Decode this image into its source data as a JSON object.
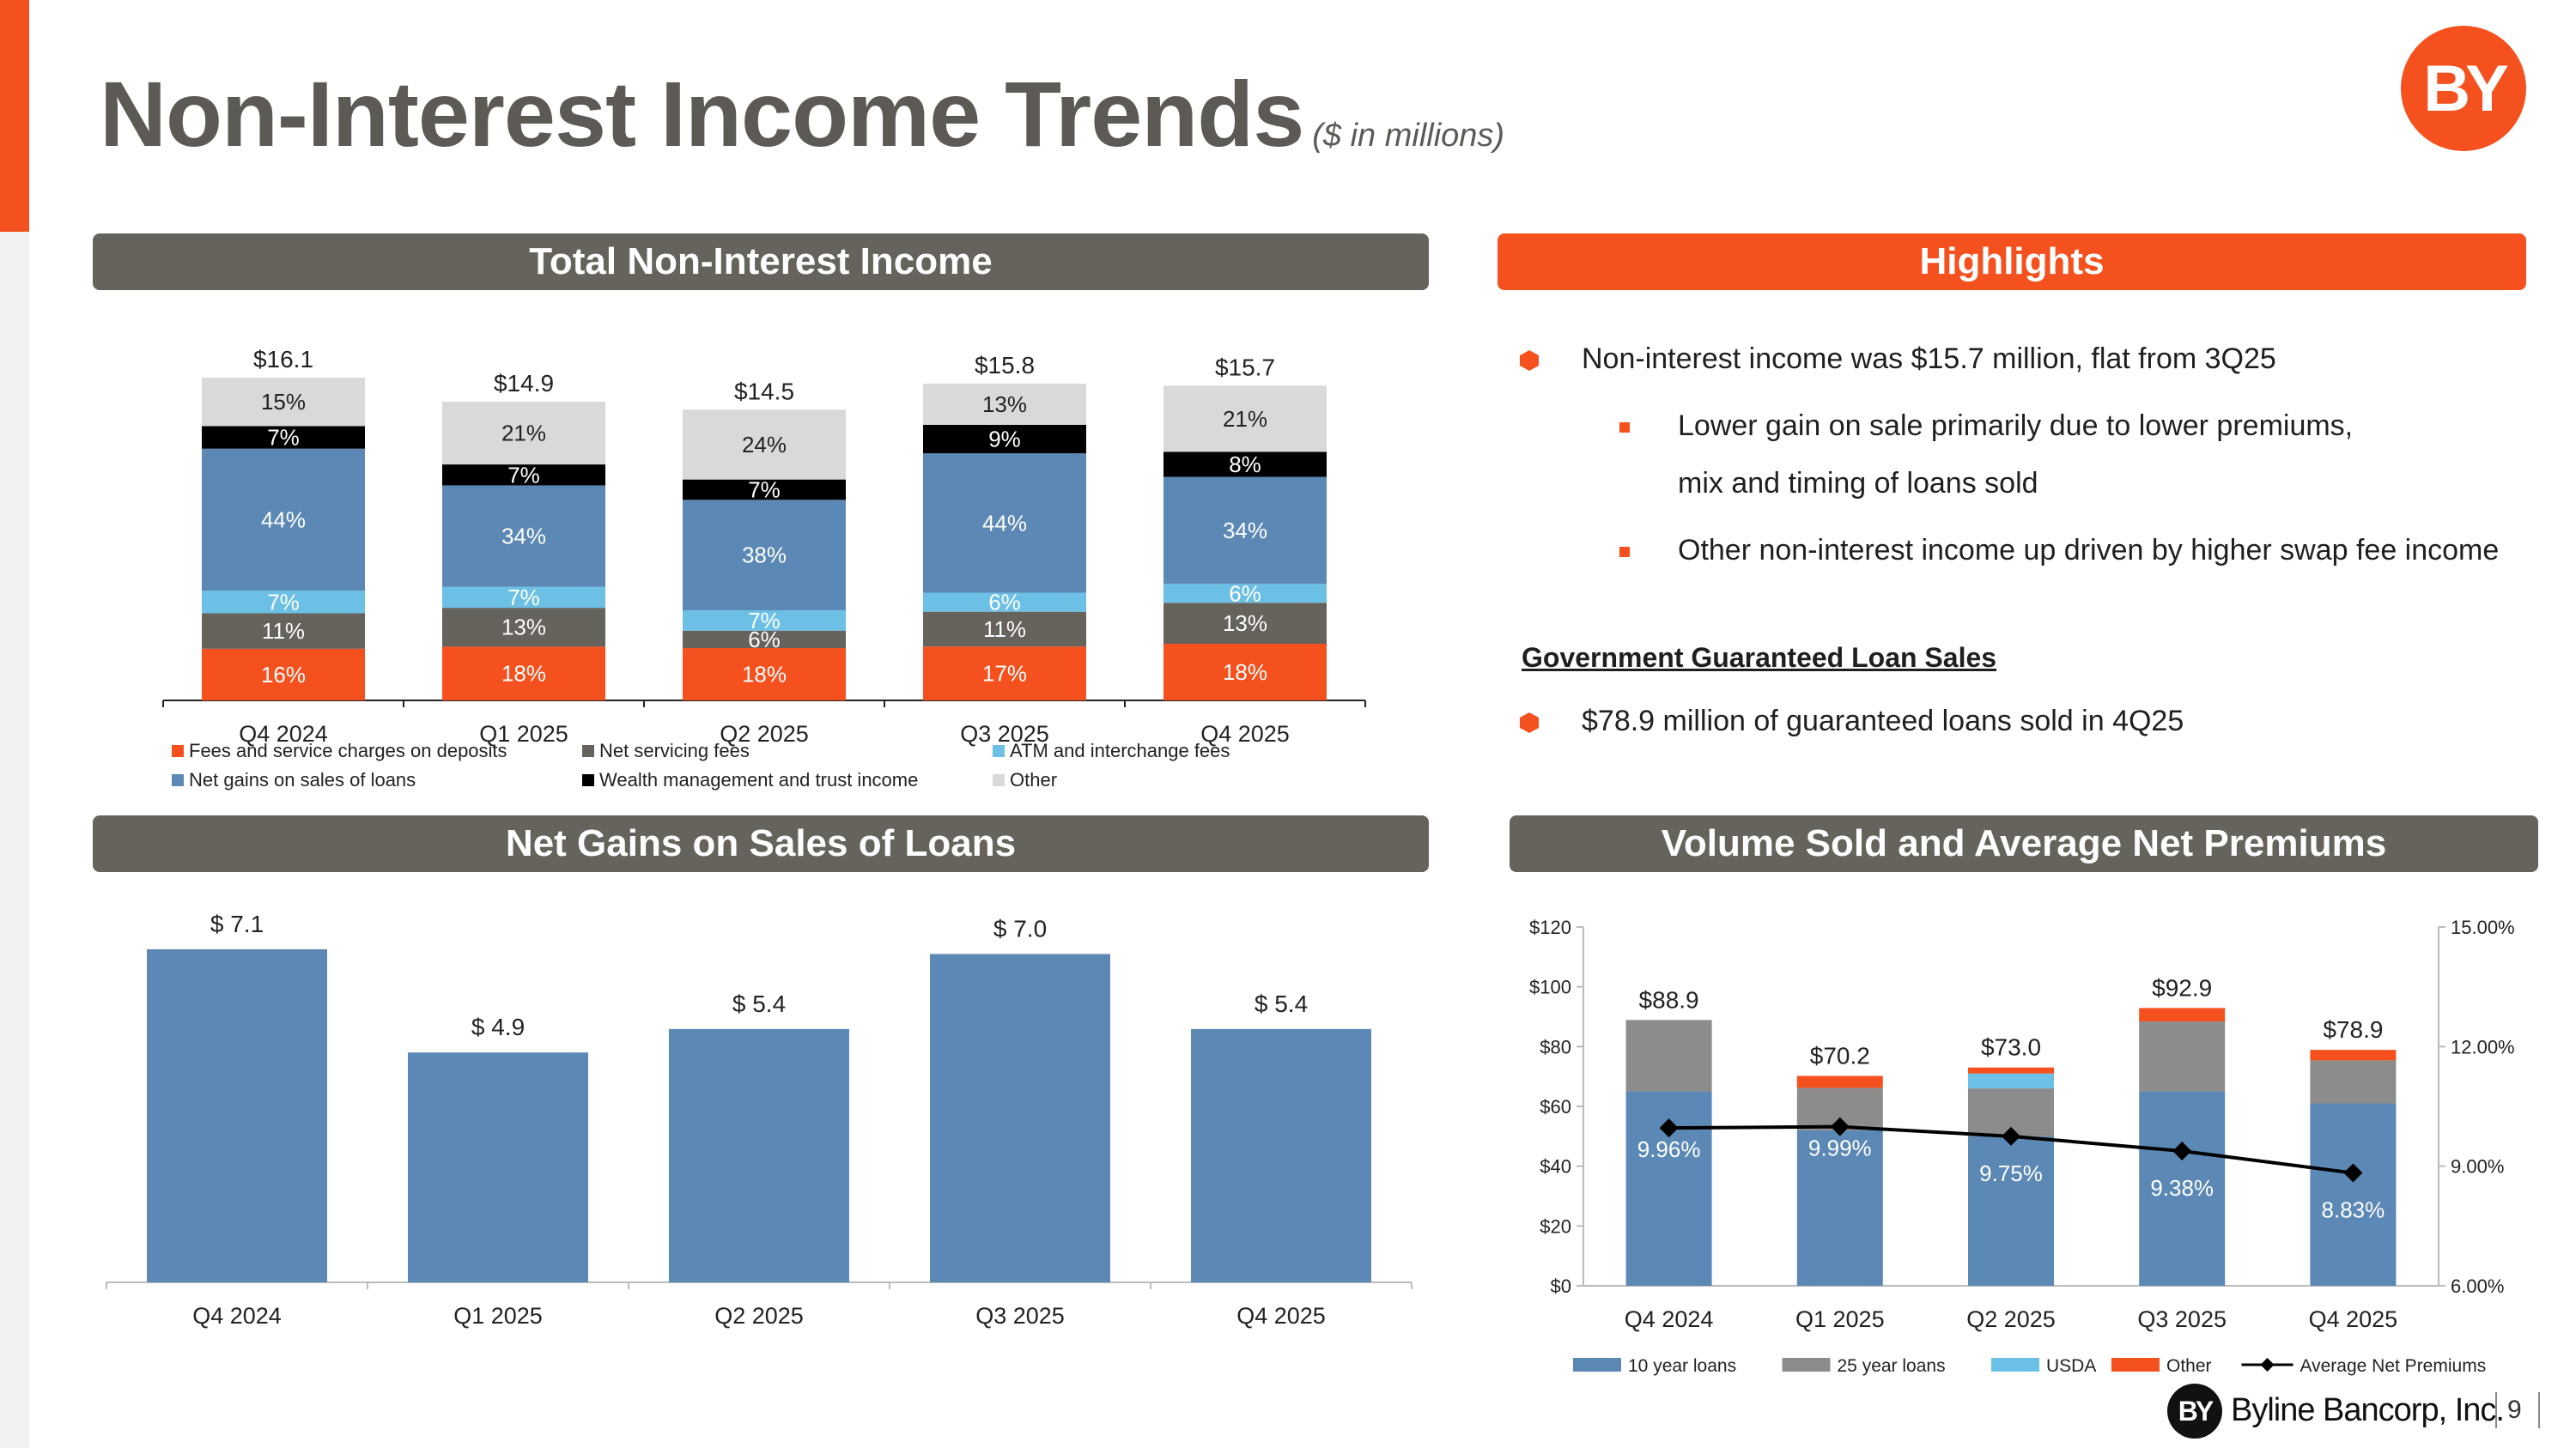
{
  "header": {
    "title": "Non-Interest Income Trends",
    "subtitle": "($ in millions)",
    "logo_text": "BY"
  },
  "panels": {
    "total_title": "Total Non-Interest Income",
    "highlights_title": "Highlights",
    "gains_title": "Net Gains on Sales of Loans",
    "volume_title": "Volume Sold and Average Net Premiums"
  },
  "highlights": {
    "bullet1": "Non-interest income was $15.7 million, flat from 3Q25",
    "sub1_line1": "Lower gain on sale primarily due to lower premiums,",
    "sub1_line2": "mix and timing of loans sold",
    "sub2": "Other non-interest income up driven by higher swap fee income",
    "gov_heading": "Government Guaranteed Loan Sales",
    "bullet2": "$78.9 million of guaranteed loans sold in 4Q25"
  },
  "colors": {
    "orange": "#f4511e",
    "dark_gray": "#66625c",
    "blue": "#5b88b5",
    "light_blue": "#6cc0e5",
    "mid_gray": "#8c8c8c",
    "light_gray": "#d9d9d9",
    "black": "#000000"
  },
  "chart_data": [
    {
      "type": "bar",
      "stacked": true,
      "normalized": true,
      "categories": [
        "Q4 2024",
        "Q1 2025",
        "Q2 2025",
        "Q3 2025",
        "Q4 2025"
      ],
      "totals": [
        "$16.1",
        "$14.9",
        "$14.5",
        "$15.8",
        "$15.7"
      ],
      "total_values": [
        16.1,
        14.9,
        14.5,
        15.8,
        15.7
      ],
      "series": [
        {
          "name": "Fees and service charges on deposits",
          "values": [
            16,
            18,
            18,
            17,
            18
          ],
          "color": "#f4511e"
        },
        {
          "name": "Net servicing fees",
          "values": [
            11,
            13,
            6,
            11,
            13
          ],
          "color": "#66625c"
        },
        {
          "name": "ATM and interchange fees",
          "values": [
            7,
            7,
            7,
            6,
            6
          ],
          "color": "#6cc0e5"
        },
        {
          "name": "Net gains on sales of loans",
          "values": [
            44,
            34,
            38,
            44,
            34
          ],
          "color": "#5b88b5"
        },
        {
          "name": "Wealth management and trust income",
          "values": [
            7,
            7,
            7,
            9,
            8
          ],
          "color": "#000000"
        },
        {
          "name": "Other",
          "values": [
            15,
            21,
            24,
            13,
            21
          ],
          "color": "#d9d9d9"
        }
      ],
      "legend_position": "bottom"
    },
    {
      "type": "bar",
      "categories": [
        "Q4 2024",
        "Q1 2025",
        "Q2 2025",
        "Q3 2025",
        "Q4 2025"
      ],
      "values": [
        7.1,
        4.9,
        5.4,
        7.0,
        5.4
      ],
      "labels": [
        "$ 7.1",
        "$ 4.9",
        "$ 5.4",
        "$ 7.0",
        "$ 5.4"
      ],
      "ylim": [
        0,
        8
      ],
      "color": "#5b88b5"
    },
    {
      "type": "bar",
      "stacked": true,
      "categories": [
        "Q4 2024",
        "Q1 2025",
        "Q2 2025",
        "Q3 2025",
        "Q4 2025"
      ],
      "series": [
        {
          "name": "10 year loans",
          "values": [
            65,
            52,
            50,
            65,
            61
          ],
          "color": "#5b88b5"
        },
        {
          "name": "25 year loans",
          "values": [
            23.9,
            14.2,
            16.0,
            23.4,
            14.4
          ],
          "color": "#8c8c8c"
        },
        {
          "name": "USDA",
          "values": [
            0,
            0,
            5.0,
            0,
            0
          ],
          "color": "#6cc0e5"
        },
        {
          "name": "Other",
          "values": [
            0,
            4.0,
            2.0,
            4.5,
            3.5
          ],
          "color": "#f4511e"
        }
      ],
      "totals": [
        "$88.9",
        "$70.2",
        "$73.0",
        "$92.9",
        "$78.9"
      ],
      "line_series": {
        "name": "Average Net Premiums",
        "values": [
          9.96,
          9.99,
          9.75,
          9.38,
          8.83
        ],
        "labels": [
          "9.96%",
          "9.99%",
          "9.75%",
          "9.38%",
          "8.83%"
        ],
        "color": "#000000"
      },
      "y_left": {
        "ticks": [
          "$0",
          "$20",
          "$40",
          "$60",
          "$80",
          "$100",
          "$120"
        ],
        "min": 0,
        "max": 120
      },
      "y_right": {
        "ticks": [
          "6.00%",
          "9.00%",
          "12.00%",
          "15.00%"
        ],
        "min": 6,
        "max": 15
      },
      "legend_position": "bottom"
    }
  ],
  "footer": {
    "logo_text": "BY",
    "company": "Byline Bancorp, Inc.",
    "page": "9"
  }
}
